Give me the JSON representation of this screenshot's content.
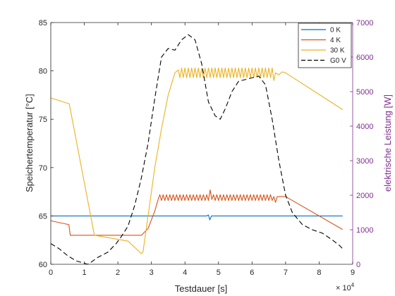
{
  "chart_data": {
    "type": "line",
    "title": "",
    "xlabel": "Testdauer [s]",
    "x_exponent_label": "× 10",
    "x_exponent_power": "4",
    "ylabel_left": "Speichertemperatur [°C]",
    "ylabel_right": "elektrische Leistung [W]",
    "xlim": [
      0,
      90000
    ],
    "ylim_left": [
      60,
      85
    ],
    "ylim_right": [
      0,
      7000
    ],
    "grid": false,
    "legend_position": "top-right",
    "x_tick_values": [
      0,
      10000,
      20000,
      30000,
      40000,
      50000,
      60000,
      70000,
      80000,
      90000
    ],
    "x_tick_labels": [
      "0",
      "1",
      "2",
      "3",
      "4",
      "5",
      "6",
      "7",
      "8",
      "9"
    ],
    "y_left_ticks": [
      60,
      65,
      70,
      75,
      80,
      85
    ],
    "y_left_tick_labels": [
      "60",
      "65",
      "70",
      "75",
      "80",
      "85"
    ],
    "y_right_ticks": [
      0,
      1000,
      2000,
      3000,
      4000,
      5000,
      6000,
      7000
    ],
    "y_right_tick_labels": [
      "0",
      "1000",
      "2000",
      "3000",
      "4000",
      "5000",
      "6000",
      "7000"
    ],
    "colors": {
      "axis": "#262626",
      "right_axis": "#7e2f8e",
      "series_0k": "#0072bd",
      "series_4k": "#d95319",
      "series_30k": "#edb120",
      "series_g0v": "#000000"
    },
    "series": [
      {
        "name": "0 K",
        "axis": "left",
        "color": "#0072bd",
        "dash": "solid",
        "points": [
          [
            0,
            65.0
          ],
          [
            46500,
            65.0
          ],
          [
            47000,
            65.1
          ],
          [
            47400,
            64.6
          ],
          [
            47900,
            65.0
          ],
          [
            87000,
            65.0
          ]
        ]
      },
      {
        "name": "4 K",
        "axis": "left",
        "color": "#d95319",
        "dash": "solid",
        "points": [
          [
            0,
            64.5
          ],
          [
            5400,
            64.1
          ],
          [
            5800,
            63.0
          ],
          [
            13000,
            63.0
          ],
          [
            27000,
            63.0
          ],
          [
            29000,
            63.7
          ],
          [
            31000,
            65.5
          ],
          [
            32000,
            66.7
          ],
          [
            32500,
            67.2
          ],
          [
            33000,
            66.6
          ],
          [
            33500,
            67.2
          ],
          [
            34000,
            66.6
          ],
          [
            34500,
            67.2
          ],
          [
            35000,
            66.6
          ],
          [
            35500,
            67.2
          ],
          [
            36000,
            66.6
          ],
          [
            36500,
            67.2
          ],
          [
            37000,
            66.6
          ],
          [
            37500,
            67.2
          ],
          [
            38000,
            66.6
          ],
          [
            38500,
            67.2
          ],
          [
            39000,
            66.6
          ],
          [
            39500,
            67.2
          ],
          [
            40000,
            66.6
          ],
          [
            40500,
            67.2
          ],
          [
            41000,
            66.6
          ],
          [
            41500,
            67.2
          ],
          [
            42000,
            66.6
          ],
          [
            42500,
            67.2
          ],
          [
            43000,
            66.6
          ],
          [
            43500,
            67.2
          ],
          [
            44000,
            66.6
          ],
          [
            44500,
            67.2
          ],
          [
            45000,
            66.6
          ],
          [
            45500,
            67.2
          ],
          [
            46000,
            66.6
          ],
          [
            46500,
            67.2
          ],
          [
            47000,
            66.6
          ],
          [
            47500,
            67.7
          ],
          [
            48000,
            66.7
          ],
          [
            48500,
            67.2
          ],
          [
            49000,
            66.6
          ],
          [
            49500,
            67.2
          ],
          [
            50000,
            66.6
          ],
          [
            50500,
            67.2
          ],
          [
            51000,
            66.6
          ],
          [
            51500,
            67.2
          ],
          [
            52000,
            66.6
          ],
          [
            52500,
            67.2
          ],
          [
            53000,
            66.6
          ],
          [
            53500,
            67.2
          ],
          [
            54000,
            66.6
          ],
          [
            54500,
            67.2
          ],
          [
            55000,
            66.6
          ],
          [
            55500,
            67.2
          ],
          [
            56000,
            66.6
          ],
          [
            56500,
            67.2
          ],
          [
            57000,
            66.6
          ],
          [
            57500,
            67.2
          ],
          [
            58000,
            66.6
          ],
          [
            58500,
            67.2
          ],
          [
            59000,
            66.6
          ],
          [
            59500,
            67.2
          ],
          [
            60000,
            66.6
          ],
          [
            60500,
            67.2
          ],
          [
            61000,
            66.6
          ],
          [
            61500,
            67.2
          ],
          [
            62000,
            66.6
          ],
          [
            62500,
            67.2
          ],
          [
            63000,
            66.6
          ],
          [
            63500,
            67.2
          ],
          [
            64000,
            66.6
          ],
          [
            64500,
            67.2
          ],
          [
            65000,
            66.6
          ],
          [
            65500,
            67.2
          ],
          [
            66000,
            66.6
          ],
          [
            66500,
            67.0
          ],
          [
            67000,
            66.4
          ],
          [
            67500,
            67.0
          ],
          [
            70000,
            67.0
          ],
          [
            87000,
            63.6
          ]
        ]
      },
      {
        "name": "30 K",
        "axis": "left",
        "color": "#edb120",
        "dash": "solid",
        "points": [
          [
            0,
            77.2
          ],
          [
            5500,
            76.6
          ],
          [
            13000,
            63.0
          ],
          [
            23000,
            62.4
          ],
          [
            27000,
            61.1
          ],
          [
            27500,
            61.3
          ],
          [
            29000,
            65.0
          ],
          [
            31000,
            70.0
          ],
          [
            33000,
            74.0
          ],
          [
            35000,
            77.5
          ],
          [
            37000,
            79.8
          ],
          [
            38000,
            80.1
          ],
          [
            38500,
            79.3
          ],
          [
            39000,
            80.3
          ],
          [
            39500,
            79.3
          ],
          [
            40000,
            80.3
          ],
          [
            40500,
            79.3
          ],
          [
            41000,
            80.3
          ],
          [
            41500,
            79.3
          ],
          [
            42000,
            80.3
          ],
          [
            42500,
            79.3
          ],
          [
            43000,
            80.3
          ],
          [
            43500,
            79.3
          ],
          [
            44000,
            80.3
          ],
          [
            44500,
            79.3
          ],
          [
            45000,
            80.3
          ],
          [
            45500,
            79.3
          ],
          [
            46000,
            80.3
          ],
          [
            46500,
            79.3
          ],
          [
            47000,
            80.3
          ],
          [
            47500,
            79.3
          ],
          [
            48000,
            80.3
          ],
          [
            48500,
            79.3
          ],
          [
            49000,
            80.3
          ],
          [
            49500,
            79.3
          ],
          [
            50000,
            80.3
          ],
          [
            50500,
            79.3
          ],
          [
            51000,
            80.3
          ],
          [
            51500,
            79.3
          ],
          [
            52000,
            80.3
          ],
          [
            52500,
            79.3
          ],
          [
            53000,
            80.3
          ],
          [
            53500,
            79.3
          ],
          [
            54000,
            80.3
          ],
          [
            54500,
            79.3
          ],
          [
            55000,
            80.3
          ],
          [
            55500,
            79.3
          ],
          [
            56000,
            80.3
          ],
          [
            56500,
            79.3
          ],
          [
            57000,
            80.3
          ],
          [
            57500,
            79.3
          ],
          [
            58000,
            80.3
          ],
          [
            58500,
            79.3
          ],
          [
            59000,
            80.3
          ],
          [
            59500,
            79.3
          ],
          [
            60000,
            80.3
          ],
          [
            60500,
            79.3
          ],
          [
            61000,
            80.3
          ],
          [
            61500,
            79.3
          ],
          [
            62000,
            80.3
          ],
          [
            62500,
            79.3
          ],
          [
            63000,
            80.3
          ],
          [
            63500,
            79.3
          ],
          [
            64000,
            80.3
          ],
          [
            64500,
            79.3
          ],
          [
            65000,
            80.3
          ],
          [
            65500,
            79.3
          ],
          [
            66000,
            80.3
          ],
          [
            66500,
            79.0
          ],
          [
            67000,
            79.8
          ],
          [
            68000,
            79.6
          ],
          [
            69000,
            79.9
          ],
          [
            70000,
            79.8
          ],
          [
            87000,
            76.0
          ]
        ]
      },
      {
        "name": "G0 V",
        "axis": "right",
        "color": "#000000",
        "dash": "dashed",
        "points": [
          [
            0,
            600
          ],
          [
            2500,
            450
          ],
          [
            5000,
            250
          ],
          [
            7500,
            100
          ],
          [
            10000,
            30
          ],
          [
            11000,
            0
          ],
          [
            12000,
            60
          ],
          [
            14000,
            200
          ],
          [
            17000,
            350
          ],
          [
            19500,
            600
          ],
          [
            21000,
            800
          ],
          [
            23000,
            1100
          ],
          [
            25000,
            1700
          ],
          [
            27000,
            2500
          ],
          [
            29000,
            3500
          ],
          [
            31000,
            4800
          ],
          [
            33000,
            6000
          ],
          [
            35000,
            6250
          ],
          [
            37000,
            6200
          ],
          [
            39000,
            6500
          ],
          [
            41000,
            6650
          ],
          [
            43000,
            6500
          ],
          [
            45000,
            5800
          ],
          [
            47000,
            4700
          ],
          [
            49000,
            4300
          ],
          [
            50500,
            4200
          ],
          [
            52000,
            4500
          ],
          [
            54000,
            5000
          ],
          [
            56000,
            5300
          ],
          [
            58000,
            5350
          ],
          [
            60000,
            5400
          ],
          [
            62000,
            5450
          ],
          [
            64000,
            5200
          ],
          [
            66000,
            4200
          ],
          [
            68000,
            3000
          ],
          [
            70000,
            2000
          ],
          [
            72000,
            1500
          ],
          [
            75000,
            1150
          ],
          [
            78000,
            1000
          ],
          [
            81000,
            900
          ],
          [
            84000,
            700
          ],
          [
            86000,
            550
          ],
          [
            87000,
            450
          ]
        ]
      }
    ]
  }
}
